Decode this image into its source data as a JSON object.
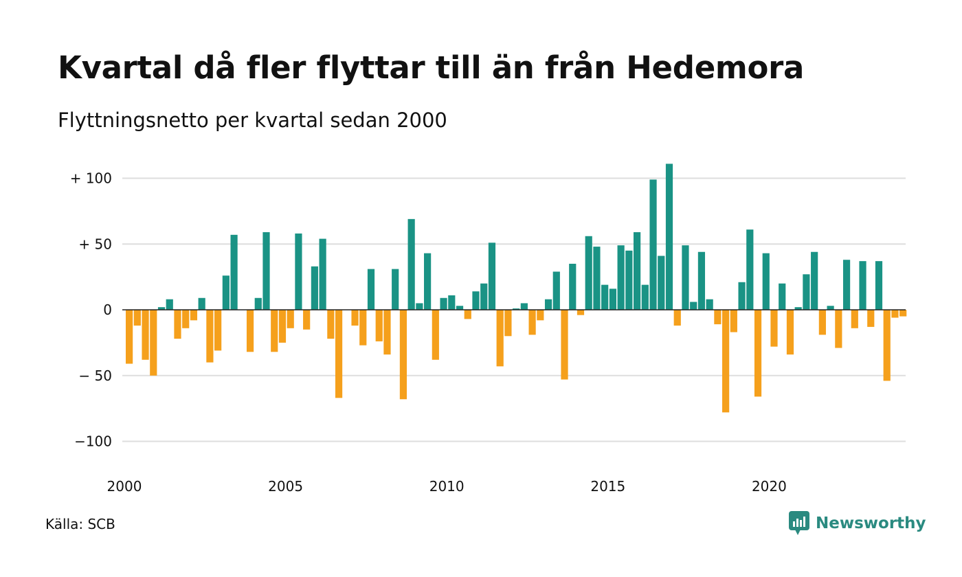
{
  "title": "Kvartal då fler flyttar till än från Hedemora",
  "subtitle": "Flyttningsnetto per kvartal sedan 2000",
  "source": "Källa: SCB",
  "brand": {
    "name": "Newsworthy",
    "icon": "newsworthy-logo-icon"
  },
  "colors": {
    "positive": "#1a9385",
    "negative": "#f5a01c",
    "grid": "#dddddd",
    "zero": "#222222"
  },
  "chart_data": {
    "type": "bar",
    "title": "Kvartal då fler flyttar till än från Hedemora",
    "subtitle": "Flyttningsnetto per kvartal sedan 2000",
    "xlabel": "",
    "ylabel": "",
    "x_ticks": [
      "2000",
      "2005",
      "2010",
      "2015",
      "2020"
    ],
    "y_ticks": [
      {
        "value": 100,
        "label": "+ 100"
      },
      {
        "value": 50,
        "label": "+  50"
      },
      {
        "value": 0,
        "label": "0"
      },
      {
        "value": -50,
        "label": "− 50"
      },
      {
        "value": -100,
        "label": "−100"
      }
    ],
    "ylim": [
      -120,
      115
    ],
    "grid": true,
    "legend": "none",
    "start": "2000 Q1",
    "frequency": "quarterly",
    "values": [
      -41,
      -12,
      -38,
      -50,
      2,
      8,
      -22,
      -14,
      -8,
      9,
      -40,
      -31,
      26,
      57,
      0,
      -32,
      9,
      59,
      -32,
      -25,
      -14,
      58,
      -15,
      33,
      54,
      -22,
      -67,
      0,
      -12,
      -27,
      31,
      -24,
      -34,
      31,
      -68,
      69,
      5,
      43,
      -38,
      9,
      11,
      3,
      -7,
      14,
      20,
      51,
      -43,
      -20,
      1,
      5,
      -19,
      -8,
      8,
      29,
      -53,
      35,
      -4,
      56,
      48,
      19,
      16,
      49,
      45,
      59,
      19,
      99,
      41,
      111,
      -12,
      49,
      6,
      44,
      8,
      -11,
      -78,
      -17,
      21,
      61,
      -66,
      43,
      -28,
      20,
      -34,
      2,
      27,
      44,
      -19,
      3,
      -29,
      38,
      -14,
      37,
      -13,
      37,
      -54,
      -6,
      -5
    ]
  }
}
